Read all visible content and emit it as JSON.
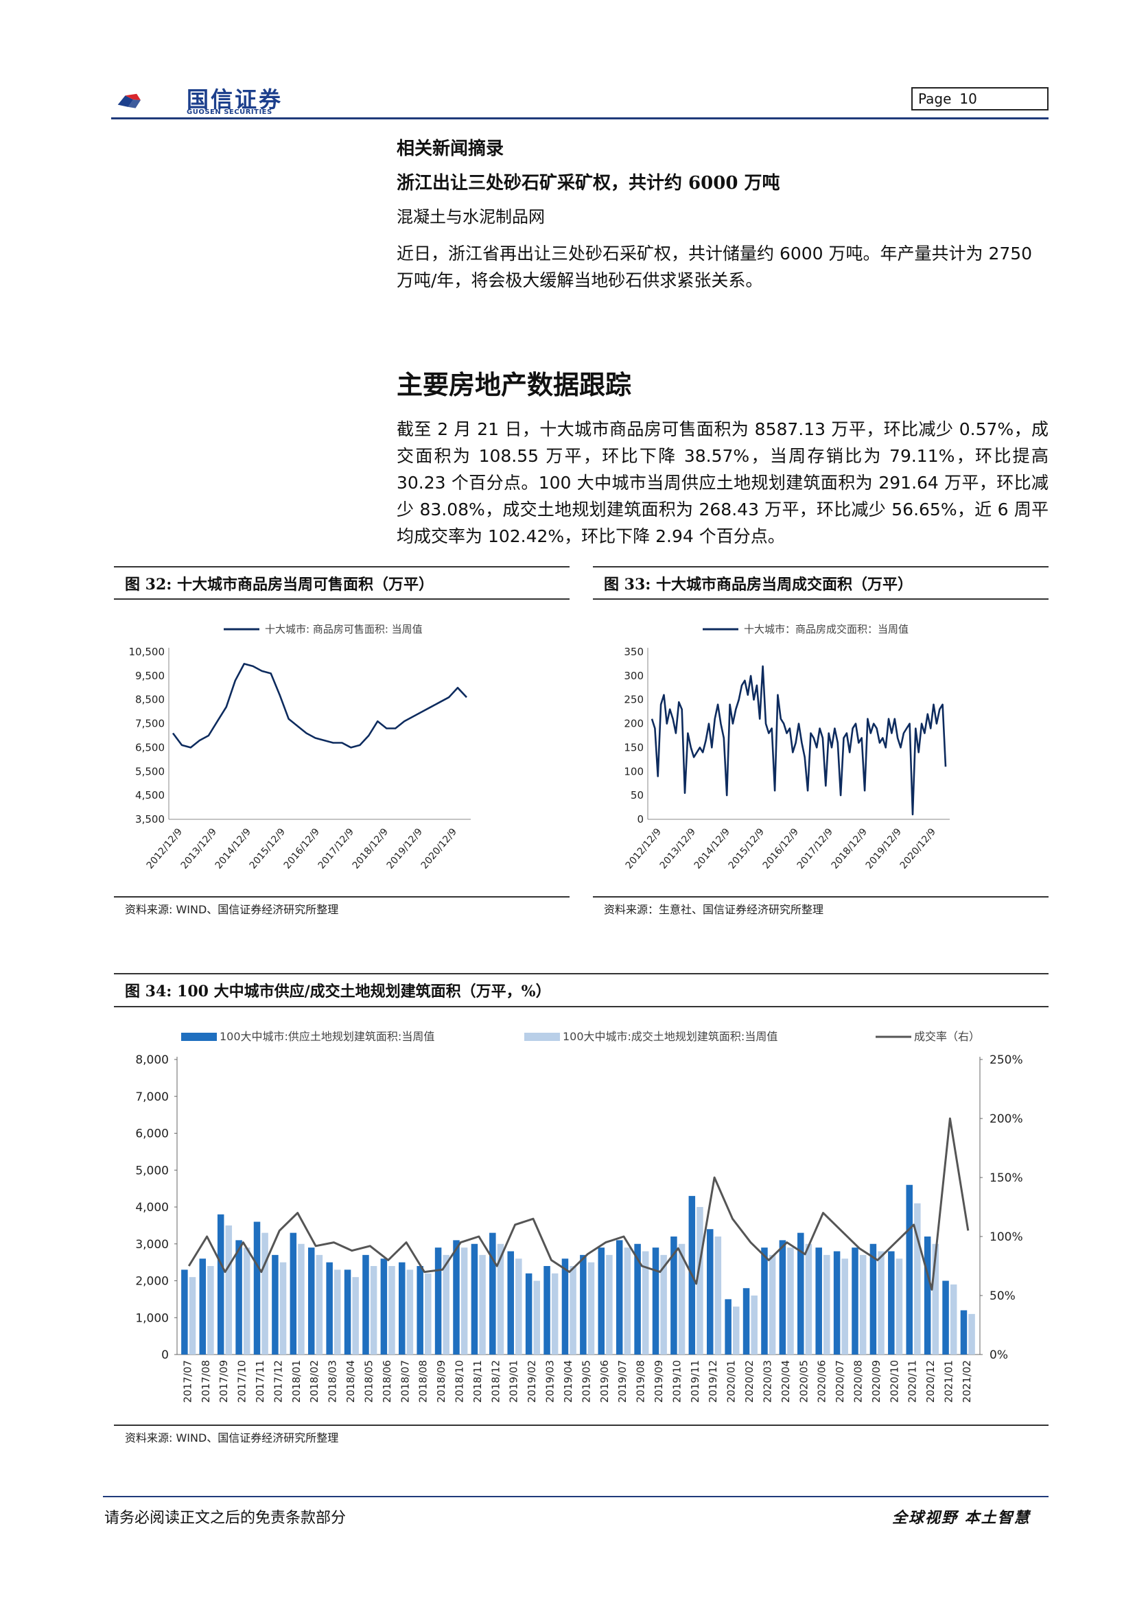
{
  "header": {
    "brand_cn": "国信证券",
    "brand_en": "GUOSEN SECURITIES",
    "page_label": "Page",
    "page_number": "10",
    "colors": {
      "brand_red": "#d9262c",
      "brand_blue": "#1c3f8c"
    }
  },
  "news": {
    "section_title": "相关新闻摘录",
    "headline": "浙江出让三处砂石矿采矿权，共计约 6000 万吨",
    "source": "混凝土与水泥制品网",
    "body": "近日，浙江省再出让三处砂石采矿权，共计储量约 6000 万吨。年产量共计为 2750 万吨/年，将会极大缓解当地砂石供求紧张关系。"
  },
  "section": {
    "title": "主要房地产数据跟踪",
    "body": "截至 2 月 21 日，十大城市商品房可售面积为 8587.13 万平，环比减少 0.57%，成交面积为 108.55 万平，环比下降 38.57%，当周存销比为 79.11%，环比提高 30.23 个百分点。100 大中城市当周供应土地规划建筑面积为 291.64 万平，环比减少 83.08%，成交土地规划建筑面积为 268.43 万平，环比减少 56.65%，近 6 周平均成交率为 102.42%，环比下降 2.94 个百分点。"
  },
  "fig32": {
    "caption": "图 32:  十大城市商品房当周可售面积（万平）",
    "source": "资料来源: WIND、国信证券经济研究所整理"
  },
  "fig33": {
    "caption": "图 33:  十大城市商品房当周成交面积（万平）",
    "source": "资料来源：生意社、国信证券经济研究所整理"
  },
  "fig34": {
    "caption": "图 34:  100 大中城市供应/成交土地规划建筑面积（万平，%）",
    "source": "资料来源: WIND、国信证券经济研究所整理"
  },
  "footer": {
    "left": "请务必阅读正文之后的免责条款部分",
    "right": "全球视野   本土智慧"
  },
  "chart_data": [
    {
      "type": "line",
      "legend_position": "top-center",
      "grid": false,
      "series": [
        {
          "name": "十大城市: 商品房可售面积: 当周值",
          "color": "#0d2b5e",
          "x": [
            "2012/12/9",
            "2013/03",
            "2013/06",
            "2013/09",
            "2013/12",
            "2014/03",
            "2014/06",
            "2014/09",
            "2014/12",
            "2015/03",
            "2015/06",
            "2015/09",
            "2015/12",
            "2016/03",
            "2016/06",
            "2016/09",
            "2016/12",
            "2017/03",
            "2017/06",
            "2017/09",
            "2017/12",
            "2018/03",
            "2018/06",
            "2018/09",
            "2018/12",
            "2019/03",
            "2019/06",
            "2019/09",
            "2019/12",
            "2020/03",
            "2020/06",
            "2020/09",
            "2020/12",
            "2021/02"
          ],
          "values": [
            7100,
            6600,
            6500,
            6800,
            7000,
            7600,
            8200,
            9300,
            10000,
            9900,
            9700,
            9600,
            8700,
            7700,
            7400,
            7100,
            6900,
            6800,
            6700,
            6700,
            6500,
            6600,
            7000,
            7600,
            7300,
            7300,
            7600,
            7800,
            8000,
            8200,
            8400,
            8600,
            9000,
            8600
          ]
        }
      ],
      "x_ticks": [
        "2012/12/9",
        "2013/12/9",
        "2014/12/9",
        "2015/12/9",
        "2016/12/9",
        "2017/12/9",
        "2018/12/9",
        "2019/12/9",
        "2020/12/9"
      ],
      "y_ticks": [
        "3,500",
        "4,500",
        "5,500",
        "6,500",
        "7,500",
        "8,500",
        "9,500",
        "10,500"
      ],
      "ylim": [
        3500,
        10500
      ]
    },
    {
      "type": "line",
      "legend_position": "top-center",
      "grid": false,
      "series": [
        {
          "name": "十大城市：商品房成交面积：当周值",
          "color": "#0d2b5e",
          "x": [
            "2012/12",
            "2013/01",
            "2013/02",
            "2013/03",
            "2013/04",
            "2013/05",
            "2013/06",
            "2013/07",
            "2013/08",
            "2013/09",
            "2013/10",
            "2013/11",
            "2013/12",
            "2014/01",
            "2014/02",
            "2014/03",
            "2014/04",
            "2014/05",
            "2014/06",
            "2014/07",
            "2014/08",
            "2014/09",
            "2014/10",
            "2014/11",
            "2014/12",
            "2015/01",
            "2015/02",
            "2015/03",
            "2015/04",
            "2015/05",
            "2015/06",
            "2015/07",
            "2015/08",
            "2015/09",
            "2015/10",
            "2015/11",
            "2015/12",
            "2016/01",
            "2016/02",
            "2016/03",
            "2016/04",
            "2016/05",
            "2016/06",
            "2016/07",
            "2016/08",
            "2016/09",
            "2016/10",
            "2016/11",
            "2016/12",
            "2017/01",
            "2017/02",
            "2017/03",
            "2017/04",
            "2017/05",
            "2017/06",
            "2017/07",
            "2017/08",
            "2017/09",
            "2017/10",
            "2017/11",
            "2017/12",
            "2018/01",
            "2018/02",
            "2018/03",
            "2018/04",
            "2018/05",
            "2018/06",
            "2018/07",
            "2018/08",
            "2018/09",
            "2018/10",
            "2018/11",
            "2018/12",
            "2019/01",
            "2019/02",
            "2019/03",
            "2019/04",
            "2019/05",
            "2019/06",
            "2019/07",
            "2019/08",
            "2019/09",
            "2019/10",
            "2019/11",
            "2019/12",
            "2020/01",
            "2020/02",
            "2020/03",
            "2020/04",
            "2020/05",
            "2020/06",
            "2020/07",
            "2020/08",
            "2020/09",
            "2020/10",
            "2020/11",
            "2020/12",
            "2021/01",
            "2021/02"
          ],
          "values": [
            210,
            190,
            90,
            240,
            260,
            200,
            230,
            210,
            180,
            245,
            230,
            55,
            180,
            150,
            130,
            140,
            150,
            140,
            165,
            200,
            150,
            210,
            240,
            200,
            170,
            50,
            240,
            200,
            230,
            250,
            280,
            290,
            260,
            300,
            250,
            280,
            210,
            320,
            200,
            180,
            190,
            60,
            260,
            210,
            200,
            180,
            190,
            140,
            160,
            200,
            160,
            130,
            60,
            180,
            170,
            150,
            190,
            170,
            70,
            180,
            150,
            190,
            160,
            50,
            170,
            180,
            140,
            190,
            200,
            160,
            170,
            60,
            210,
            180,
            200,
            190,
            160,
            170,
            150,
            210,
            180,
            210,
            170,
            150,
            180,
            190,
            200,
            10,
            190,
            140,
            200,
            180,
            220,
            190,
            240,
            200,
            230,
            240,
            110
          ]
        }
      ],
      "x_ticks": [
        "2012/12/9",
        "2013/12/9",
        "2014/12/9",
        "2015/12/9",
        "2016/12/9",
        "2017/12/9",
        "2018/12/9",
        "2019/12/9",
        "2020/12/9"
      ],
      "y_ticks": [
        "0",
        "50",
        "100",
        "150",
        "200",
        "250",
        "300",
        "350"
      ],
      "ylim": [
        0,
        350
      ]
    },
    {
      "type": "bar",
      "legend_position": "top",
      "grid": false,
      "categories": [
        "2017/07",
        "2017/08",
        "2017/09",
        "2017/10",
        "2017/11",
        "2017/12",
        "2018/01",
        "2018/02",
        "2018/03",
        "2018/04",
        "2018/05",
        "2018/06",
        "2018/07",
        "2018/08",
        "2018/09",
        "2018/10",
        "2018/11",
        "2018/12",
        "2019/01",
        "2019/02",
        "2019/03",
        "2019/04",
        "2019/05",
        "2019/06",
        "2019/07",
        "2019/08",
        "2019/09",
        "2019/10",
        "2019/11",
        "2019/12",
        "2020/01",
        "2020/02",
        "2020/03",
        "2020/04",
        "2020/05",
        "2020/06",
        "2020/07",
        "2020/08",
        "2020/09",
        "2020/10",
        "2020/11",
        "2020/12",
        "2021/01",
        "2021/02"
      ],
      "series": [
        {
          "name": "100大中城市:供应土地规划建筑面积:当周值",
          "color": "#1f6fbf",
          "type": "bar",
          "values": [
            2300,
            2600,
            3800,
            3100,
            3600,
            2700,
            3300,
            2900,
            2500,
            2300,
            2700,
            2600,
            2500,
            2400,
            2900,
            3100,
            3000,
            3300,
            2800,
            2200,
            2400,
            2600,
            2700,
            2900,
            3100,
            3000,
            2900,
            3200,
            4300,
            3400,
            1500,
            1800,
            2900,
            3100,
            3300,
            2900,
            2800,
            2900,
            3000,
            2800,
            4600,
            3200,
            2000,
            1200
          ]
        },
        {
          "name": "100大中城市:成交土地规划建筑面积:当周值",
          "color": "#b9cfe8",
          "type": "bar",
          "values": [
            2100,
            2400,
            3500,
            2900,
            3300,
            2500,
            3000,
            2700,
            2300,
            2100,
            2400,
            2400,
            2300,
            2200,
            2700,
            2900,
            2700,
            3000,
            2600,
            2000,
            2200,
            2400,
            2500,
            2700,
            2900,
            2800,
            2700,
            3000,
            4000,
            3200,
            1300,
            1600,
            2700,
            2900,
            3000,
            2700,
            2600,
            2700,
            2800,
            2600,
            4100,
            3000,
            1900,
            1100
          ]
        },
        {
          "name": "成交率（右）",
          "color": "#555555",
          "type": "line",
          "axis": "right",
          "values": [
            75,
            100,
            70,
            95,
            70,
            105,
            120,
            92,
            95,
            88,
            92,
            80,
            95,
            70,
            72,
            95,
            100,
            75,
            110,
            115,
            80,
            70,
            85,
            95,
            100,
            75,
            70,
            90,
            60,
            150,
            115,
            95,
            80,
            95,
            85,
            120,
            105,
            90,
            80,
            95,
            110,
            55,
            200,
            105
          ]
        }
      ],
      "x_ticks": [
        "2017/07",
        "2017/08",
        "2017/09",
        "2017/10",
        "2017/11",
        "2017/12",
        "2018/01",
        "2018/02",
        "2018/03",
        "2018/04",
        "2018/05",
        "2018/06",
        "2018/07",
        "2018/08",
        "2018/09",
        "2018/10",
        "2018/11",
        "2018/12",
        "2019/01",
        "2019/02",
        "2019/03",
        "2019/04",
        "2019/05",
        "2019/06",
        "2019/07",
        "2019/08",
        "2019/09",
        "2019/10",
        "2019/11",
        "2019/12",
        "2020/01",
        "2020/02",
        "2020/03",
        "2020/04",
        "2020/05",
        "2020/06",
        "2020/07",
        "2020/08",
        "2020/09",
        "2020/10",
        "2020/11",
        "2020/12",
        "2021/01",
        "2021/02"
      ],
      "y_ticks": [
        "0",
        "1,000",
        "2,000",
        "3,000",
        "4,000",
        "5,000",
        "6,000",
        "7,000",
        "8,000"
      ],
      "y2_ticks": [
        "0%",
        "50%",
        "100%",
        "150%",
        "200%",
        "250%"
      ],
      "ylim": [
        0,
        8000
      ],
      "y2lim": [
        0,
        250
      ]
    }
  ]
}
